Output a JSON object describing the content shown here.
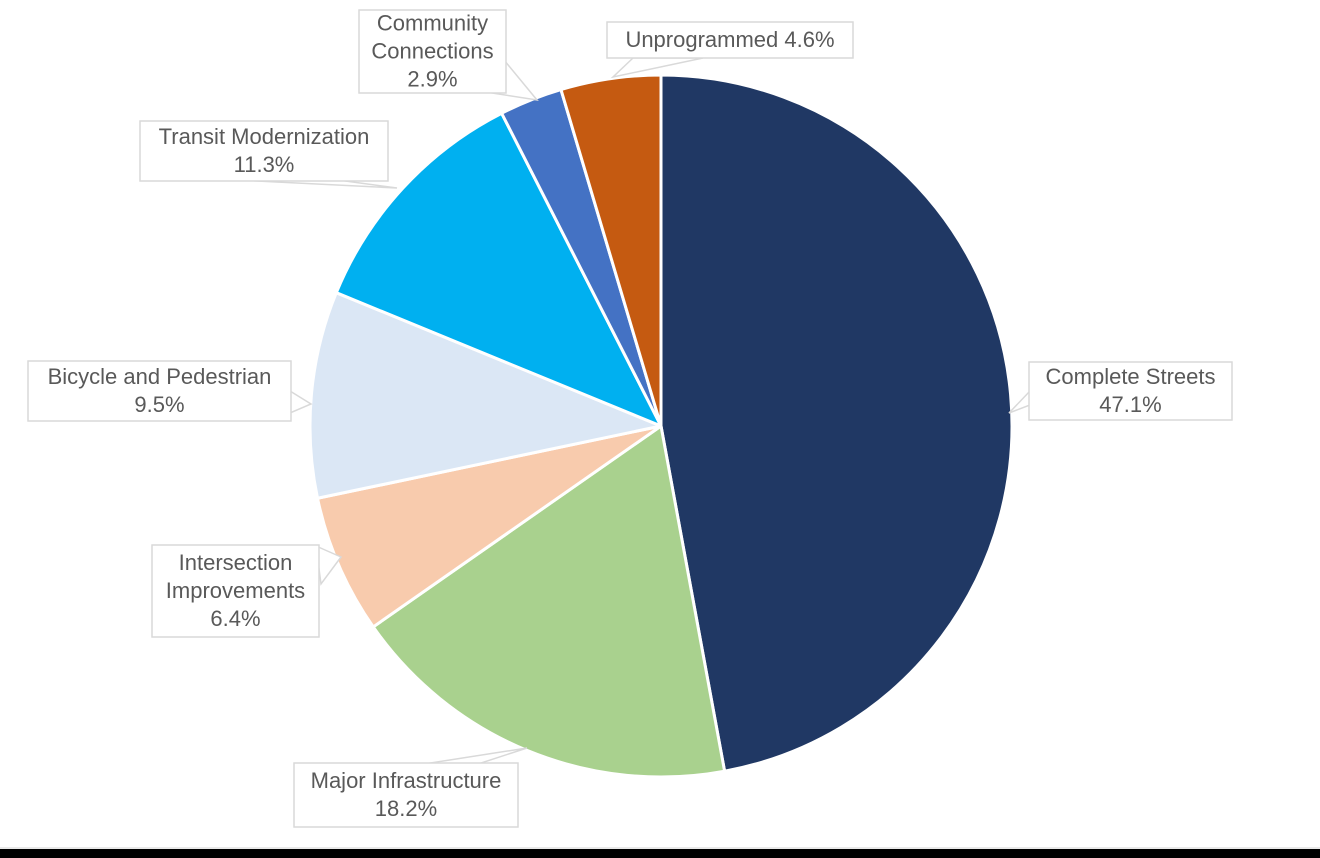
{
  "page": {
    "background_color": "#FFFFFF",
    "bottom_bar_color": "#000000"
  },
  "chart_data": {
    "type": "pie",
    "title": "",
    "unit": "%",
    "direction": "clockwise",
    "start_angle_deg": 0,
    "legend_position": "callout-labels",
    "slice_gap_color": "#FFFFFF",
    "label_text_color": "#595959",
    "label_box_fill": "#FFFFFF",
    "label_border_color": "#D9D9D9",
    "slices": [
      {
        "label": "Complete Streets",
        "value": 47.1,
        "percent_label": "47.1%",
        "color": "#203864",
        "label_lines": [
          "Complete Streets",
          "47.1%"
        ]
      },
      {
        "label": "Major Infrastructure",
        "value": 18.2,
        "percent_label": "18.2%",
        "color": "#A9D18E",
        "label_lines": [
          "Major Infrastructure",
          "18.2%"
        ]
      },
      {
        "label": "Intersection Improvements",
        "value": 6.4,
        "percent_label": "6.4%",
        "color": "#F8CBAD",
        "label_lines": [
          "Intersection",
          "Improvements",
          "6.4%"
        ]
      },
      {
        "label": "Bicycle and Pedestrian",
        "value": 9.5,
        "percent_label": "9.5%",
        "color": "#DBE7F5",
        "label_lines": [
          "Bicycle and Pedestrian",
          "9.5%"
        ]
      },
      {
        "label": "Transit Modernization",
        "value": 11.3,
        "percent_label": "11.3%",
        "color": "#00B0F0",
        "label_lines": [
          "Transit Modernization",
          "11.3%"
        ]
      },
      {
        "label": "Community Connections",
        "value": 2.9,
        "percent_label": "2.9%",
        "color": "#4472C4",
        "label_lines": [
          "Community",
          "Connections",
          "2.9%"
        ]
      },
      {
        "label": "Unprogrammed",
        "value": 4.6,
        "percent_label": "4.6%",
        "color": "#C55A11",
        "label_lines": [
          "Unprogrammed 4.6%"
        ]
      }
    ]
  }
}
